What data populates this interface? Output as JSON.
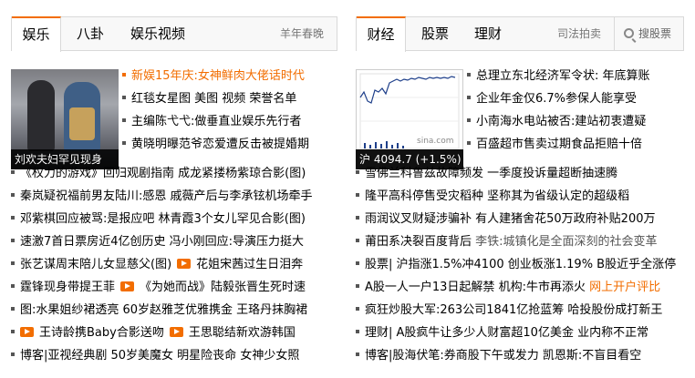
{
  "left": {
    "tabs": [
      "娱乐",
      "八卦",
      "娱乐视频"
    ],
    "tab_extra": "羊年春晚",
    "thumb_caption": "刘欢夫妇罕见现身",
    "top_items": [
      "新娱15年庆:女神鲜肉大佬话时代",
      "红毯女星图 美图 视频 荣誉名单",
      "主编陈弋弋:做垂直业娱乐先行者",
      "黄晓明曝范爷恋爱遭反击被提婚期"
    ],
    "items": [
      {
        "a": "《权力的游戏》回归观剧指南 成龙紧搂杨紫琼合影(图)"
      },
      {
        "a": "秦岚疑祝福前男友陆川:感恩 戚薇产后与李承铉机场牵手"
      },
      {
        "a": "邓紫棋回应被骂:是报应吧 林青霞3个女儿罕见合影(图)"
      },
      {
        "a": "速激7首日票房近4亿创历史 冯小刚回应:导演压力挺大"
      },
      {
        "a": "张艺谋周末陪儿女显慈父(图)",
        "v": "花姐宋茜过生日泪奔"
      },
      {
        "a": "霆锋现身带提王菲",
        "v": "《为她而战》陆毅张晋生死时速"
      },
      {
        "a": "图:水果姐纱裙透亮 60岁赵雅芝优雅携金 王珞丹抹胸裙"
      },
      {
        "pre": "",
        "a": "王诗龄携Baby合影送吻",
        "v": "王思聪结新欢游韩国"
      },
      {
        "a": "博客|亚视经典剧 50岁美魔女 明星险丧命 女神少女照"
      }
    ]
  },
  "right": {
    "tabs": [
      "财经",
      "股票",
      "理财"
    ],
    "tab_extra": "司法拍卖",
    "search_label": "搜股票",
    "thumb_caption": "沪 4094.7 (+1.5%)",
    "chart_watermark": "sina.com",
    "top_items": [
      "总理立东北经济军令状: 年底算账",
      "企业年金仅6.7%参保人能享受",
      "小南海水电站被否:建站初衷遭疑",
      "百盛超市售卖过期食品拒赔十倍"
    ],
    "items": [
      {
        "a": "雪佛兰科鲁兹故障频发 一季度投诉量超断抽速腾"
      },
      {
        "a": "隆平高科停售受灾稻种 坚称其为省级认定的超级稻"
      },
      {
        "a": "雨润议叉财疑涉骗补 有人建猪舍花50万政府补贴200万"
      },
      {
        "a": "莆田系决裂百度背后",
        "b": "李铁:城镇化是全面深刻的社会变革"
      },
      {
        "a": "股票| 沪指涨1.5%冲4100 创业板涨1.19% B股近乎全涨停"
      },
      {
        "a": "A股一人一户13日起解禁 机构:牛市再添火",
        "c": "网上开户评比"
      },
      {
        "a": "疯狂炒股大军:263公司1841亿抢蓝筹 哈投股份成打新王"
      },
      {
        "a": "理财| A股疯牛让多少人财富超10亿美金 业内称不正常"
      },
      {
        "a": "博客|股海伏笔:券商股下午或发力 凯恩斯:不盲目看空"
      }
    ]
  },
  "colors": {
    "accent": "#f26d00",
    "text": "#000000",
    "border": "#d9d9d9"
  }
}
